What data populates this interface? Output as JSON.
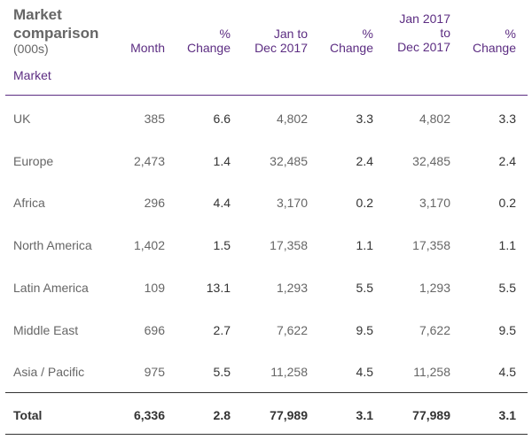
{
  "table": {
    "title": "Market comparison",
    "units": "(000s)",
    "market_header": "Market",
    "headers": [
      [
        "Month"
      ],
      [
        "%",
        "Change"
      ],
      [
        "Jan to",
        "Dec 2017"
      ],
      [
        "%",
        "Change"
      ],
      [
        "Jan 2017",
        "to",
        "Dec 2017"
      ],
      [
        "%",
        "Change"
      ]
    ],
    "rows": [
      {
        "market": "UK",
        "values": [
          "385",
          "6.6",
          "4,802",
          "3.3",
          "4,802",
          "3.3"
        ]
      },
      {
        "market": "Europe",
        "values": [
          "2,473",
          "1.4",
          "32,485",
          "2.4",
          "32,485",
          "2.4"
        ]
      },
      {
        "market": "Africa",
        "values": [
          "296",
          "4.4",
          "3,170",
          "0.2",
          "3,170",
          "0.2"
        ]
      },
      {
        "market": "North America",
        "values": [
          "1,402",
          "1.5",
          "17,358",
          "1.1",
          "17,358",
          "1.1"
        ]
      },
      {
        "market": "Latin America",
        "values": [
          "109",
          "13.1",
          "1,293",
          "5.5",
          "1,293",
          "5.5"
        ]
      },
      {
        "market": "Middle East",
        "values": [
          "696",
          "2.7",
          "7,622",
          "9.5",
          "7,622",
          "9.5"
        ]
      },
      {
        "market": "Asia / Pacific",
        "values": [
          "975",
          "5.5",
          "11,258",
          "4.5",
          "11,258",
          "4.5"
        ]
      }
    ],
    "total": {
      "market": "Total",
      "values": [
        "6,336",
        "2.8",
        "77,989",
        "3.1",
        "77,989",
        "3.1"
      ]
    }
  },
  "colors": {
    "header_accent": "#5c2d82",
    "text": "#666666",
    "text_dark": "#333333"
  }
}
